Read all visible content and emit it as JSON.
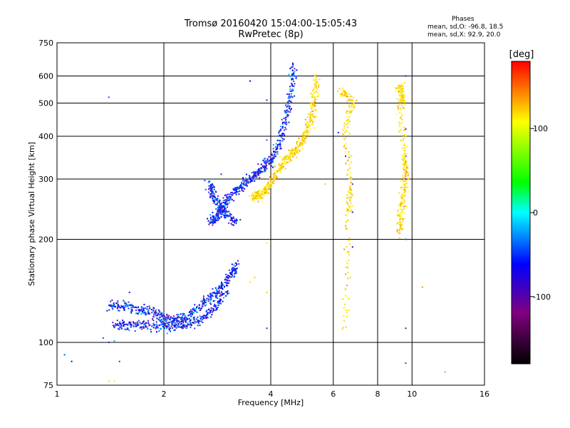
{
  "chart_data": {
    "type": "scatter",
    "title": "Tromsø 20160420 15:04:00-15:05:43",
    "subtitle": "RwPretec (8p)",
    "xlabel": "Frequency [MHz]",
    "ylabel": "Stationary phase Virtual Height [km]",
    "x_scale": "log",
    "y_scale": "log",
    "xlim": [
      1,
      16
    ],
    "ylim": [
      75,
      750
    ],
    "x_ticks": [
      1,
      2,
      4,
      6,
      8,
      10,
      16
    ],
    "y_ticks": [
      75,
      100,
      200,
      300,
      400,
      500,
      600,
      750
    ],
    "grid": true,
    "colorbar": {
      "label": "[deg]",
      "range": [
        -180,
        180
      ],
      "ticks": [
        100,
        0,
        -100
      ],
      "colors": [
        "#000000",
        "#800080",
        "#0000ff",
        "#00ffff",
        "#00ff00",
        "#ffff00",
        "#ff0000"
      ]
    },
    "phase_stats": {
      "heading": "Phases",
      "line_o": "mean, sd,O: -96.8, 18.5",
      "line_x": "mean, sd,X:  92.9, 20.0"
    },
    "series": [
      {
        "mode": "O",
        "mean_phase": -96.8,
        "traces": [
          {
            "x": [
              1.4,
              1.55,
              1.7,
              1.85,
              2.0,
              2.15,
              2.3,
              2.5,
              2.7,
              2.9,
              3.1,
              3.2
            ],
            "y": [
              128,
              128,
              125,
              122,
              118,
              116,
              118,
              126,
              136,
              146,
              158,
              168
            ]
          },
          {
            "x": [
              1.45,
              1.6,
              1.8,
              2.0,
              2.2,
              2.4,
              2.6,
              2.8,
              3.0
            ],
            "y": [
              112,
              113,
              112,
              111,
              112,
              114,
              118,
              128,
              140
            ]
          },
          {
            "x": [
              2.7,
              2.8,
              2.9,
              3.0,
              3.2,
              3.4,
              3.6,
              3.8,
              4.0,
              4.2,
              4.4,
              4.55,
              4.65
            ],
            "y": [
              225,
              230,
              245,
              258,
              275,
              292,
              310,
              325,
              340,
              375,
              440,
              530,
              640
            ]
          },
          {
            "x": [
              2.68,
              2.75,
              2.85,
              3.0,
              3.2
            ],
            "y": [
              290,
              270,
              250,
              235,
              225
            ]
          },
          {
            "x": [
              1.05,
              1.1
            ],
            "y": [
              92,
              88
            ]
          },
          {
            "x": [
              1.35,
              1.4,
              1.45
            ],
            "y": [
              103,
              100,
              101
            ]
          },
          {
            "x": [
              9.6,
              9.6,
              9.6,
              9.6,
              9.6,
              9.6,
              9.6,
              9.6
            ],
            "y": [
              600,
              420,
              350,
              300,
              250,
              200,
              110,
              87
            ]
          },
          {
            "x": [
              6.2,
              6.5,
              6.8,
              6.8,
              6.8,
              6.6
            ],
            "y": [
              410,
              350,
              290,
              240,
              190,
              340
            ]
          },
          {
            "x": [
              3.9,
              3.9,
              3.9,
              3.5,
              2.9,
              1.6,
              1.4,
              1.5
            ],
            "y": [
              110,
              510,
              390,
              580,
              310,
              140,
              520,
              88
            ]
          }
        ]
      },
      {
        "mode": "X",
        "mean_phase": 92.9,
        "traces": [
          {
            "x": [
              3.55,
              3.7,
              3.85,
              4.0,
              4.2,
              4.4,
              4.6,
              4.8,
              5.0,
              5.2,
              5.3,
              5.4
            ],
            "y": [
              265,
              268,
              275,
              290,
              320,
              340,
              355,
              375,
              405,
              450,
              510,
              600
            ]
          },
          {
            "x": [
              3.5,
              3.6
            ],
            "y": [
              150,
              155
            ]
          },
          {
            "x": [
              6.3,
              6.8,
              6.5,
              6.7,
              6.6,
              6.5
            ],
            "y": [
              540,
              510,
              420,
              280,
              240,
              110
            ]
          },
          {
            "x": [
              9.2,
              9.4,
              9.3,
              9.5,
              9.6,
              9.4,
              9.2,
              9.6
            ],
            "y": [
              560,
              530,
              490,
              350,
              310,
              250,
              210,
              320
            ]
          },
          {
            "x": [
              10.7,
              12.4,
              1.45,
              5.7,
              1.4,
              3.9,
              3.9,
              6.6
            ],
            "y": [
              145,
              82,
              77,
              290,
              77,
              195,
              140,
              160
            ]
          }
        ]
      }
    ]
  }
}
